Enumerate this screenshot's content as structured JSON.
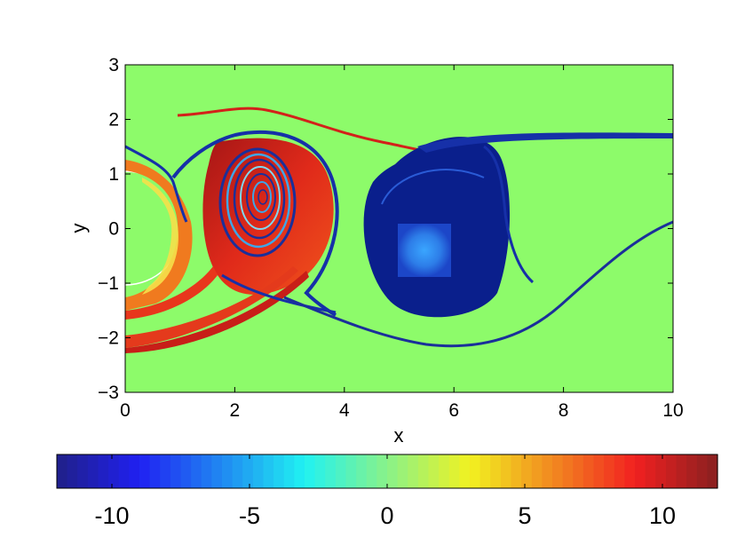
{
  "chart_data": {
    "type": "heatmap",
    "title": "",
    "xlabel": "x",
    "ylabel": "y",
    "xlim": [
      0,
      10
    ],
    "ylim": [
      -3,
      3
    ],
    "x_ticks": [
      "0",
      "2",
      "4",
      "6",
      "8",
      "10"
    ],
    "y_ticks": [
      "3",
      "2",
      "1",
      "0",
      "−1",
      "−2",
      "−3"
    ],
    "x_tick_values": [
      0,
      2,
      4,
      6,
      8,
      10
    ],
    "y_tick_values": [
      3,
      2,
      1,
      0,
      -1,
      -2,
      -3
    ],
    "colormap": "jet",
    "background_value": 0,
    "colorbar": {
      "orientation": "horizontal",
      "range": [
        -12,
        12
      ],
      "ticks": [
        "-10",
        "-5",
        "0",
        "5",
        "10"
      ],
      "tick_values": [
        -10,
        -5,
        0,
        5,
        10
      ]
    },
    "features": [
      {
        "kind": "cylinder",
        "center": [
          0,
          0
        ],
        "radius": 1,
        "value": 0
      },
      {
        "kind": "vortex",
        "center": [
          2.6,
          0.4
        ],
        "sign": "positive",
        "value": 11
      },
      {
        "kind": "vortex",
        "center": [
          5.5,
          -0.45
        ],
        "sign": "negative",
        "value": -11
      },
      {
        "kind": "filament",
        "sign": "positive",
        "value": 11
      },
      {
        "kind": "filament",
        "sign": "negative",
        "value": -11
      }
    ]
  }
}
